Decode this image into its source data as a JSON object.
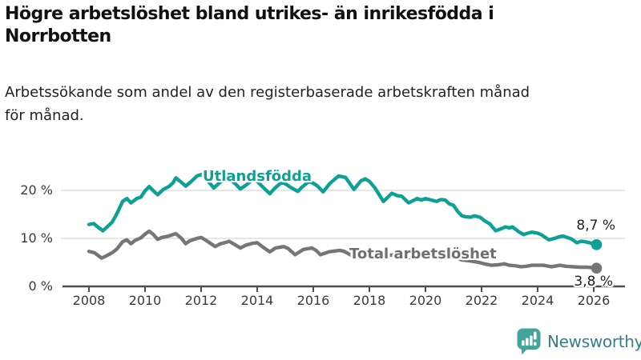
{
  "header": {
    "title_line1": "Högre arbetslöshet bland utrikes- än inrikesfödda i",
    "title_line2": "Norrbotten",
    "subtitle_line1": "Arbetssökande som andel av den registerbaserade arbetskraften månad",
    "subtitle_line2": "för månad."
  },
  "chart_data": {
    "type": "line",
    "title": "Högre arbetslöshet bland utrikes- än inrikesfödda i Norrbotten",
    "subtitle": "Arbetssökande som andel av den registerbaserade arbetskraften månad för månad.",
    "unit": "%",
    "grid": "horizontal-only",
    "legend_position": "inline-labels",
    "x_axis": {
      "ticks": [
        2008,
        2010,
        2012,
        2014,
        2016,
        2018,
        2020,
        2022,
        2024,
        2026
      ]
    },
    "y_axis": {
      "ylim": [
        0,
        25
      ],
      "ticks": [
        {
          "value": 0,
          "label": "0 %"
        },
        {
          "value": 10,
          "label": "10 %"
        },
        {
          "value": 20,
          "label": "20 %"
        }
      ]
    },
    "series": [
      {
        "name": "Utlandsfödda",
        "color": "#0da096",
        "end_value": 8.7,
        "end_value_label": "8,7 %",
        "points": [
          [
            2008.0,
            12.9
          ],
          [
            2008.17,
            13.1
          ],
          [
            2008.33,
            12.3
          ],
          [
            2008.5,
            11.6
          ],
          [
            2008.67,
            12.5
          ],
          [
            2008.83,
            13.4
          ],
          [
            2009.0,
            15.2
          ],
          [
            2009.2,
            17.7
          ],
          [
            2009.35,
            18.3
          ],
          [
            2009.5,
            17.4
          ],
          [
            2009.7,
            18.3
          ],
          [
            2009.85,
            18.6
          ],
          [
            2010.0,
            19.9
          ],
          [
            2010.15,
            20.8
          ],
          [
            2010.3,
            19.9
          ],
          [
            2010.45,
            19.1
          ],
          [
            2010.65,
            20.2
          ],
          [
            2010.85,
            20.8
          ],
          [
            2011.0,
            21.6
          ],
          [
            2011.1,
            22.6
          ],
          [
            2011.25,
            21.9
          ],
          [
            2011.45,
            20.9
          ],
          [
            2011.6,
            21.6
          ],
          [
            2011.85,
            23.0
          ],
          [
            2012.0,
            23.3
          ],
          [
            2012.2,
            22.3
          ],
          [
            2012.45,
            20.5
          ],
          [
            2012.6,
            21.3
          ],
          [
            2012.85,
            22.6
          ],
          [
            2013.0,
            22.4
          ],
          [
            2013.2,
            21.5
          ],
          [
            2013.4,
            20.3
          ],
          [
            2013.6,
            21.1
          ],
          [
            2013.85,
            22.3
          ],
          [
            2014.0,
            21.9
          ],
          [
            2014.2,
            20.7
          ],
          [
            2014.45,
            19.3
          ],
          [
            2014.6,
            20.3
          ],
          [
            2014.85,
            21.6
          ],
          [
            2015.0,
            21.4
          ],
          [
            2015.2,
            20.6
          ],
          [
            2015.45,
            19.8
          ],
          [
            2015.6,
            20.7
          ],
          [
            2015.85,
            21.9
          ],
          [
            2016.0,
            21.5
          ],
          [
            2016.15,
            20.9
          ],
          [
            2016.35,
            19.7
          ],
          [
            2016.6,
            21.5
          ],
          [
            2016.9,
            23.0
          ],
          [
            2017.0,
            22.9
          ],
          [
            2017.15,
            22.7
          ],
          [
            2017.45,
            20.2
          ],
          [
            2017.7,
            22.0
          ],
          [
            2017.85,
            22.4
          ],
          [
            2018.0,
            21.9
          ],
          [
            2018.2,
            20.5
          ],
          [
            2018.5,
            17.7
          ],
          [
            2018.8,
            19.4
          ],
          [
            2019.0,
            18.9
          ],
          [
            2019.15,
            18.8
          ],
          [
            2019.4,
            17.4
          ],
          [
            2019.7,
            18.3
          ],
          [
            2019.85,
            18.0
          ],
          [
            2020.0,
            18.3
          ],
          [
            2020.2,
            18.0
          ],
          [
            2020.4,
            17.7
          ],
          [
            2020.55,
            18.1
          ],
          [
            2020.7,
            18.0
          ],
          [
            2020.85,
            17.2
          ],
          [
            2021.0,
            16.9
          ],
          [
            2021.15,
            15.6
          ],
          [
            2021.3,
            14.7
          ],
          [
            2021.45,
            14.5
          ],
          [
            2021.6,
            14.4
          ],
          [
            2021.75,
            14.7
          ],
          [
            2021.95,
            14.4
          ],
          [
            2022.1,
            13.7
          ],
          [
            2022.3,
            13.0
          ],
          [
            2022.5,
            11.6
          ],
          [
            2022.65,
            11.9
          ],
          [
            2022.85,
            12.4
          ],
          [
            2023.0,
            12.2
          ],
          [
            2023.1,
            12.4
          ],
          [
            2023.35,
            11.3
          ],
          [
            2023.5,
            10.8
          ],
          [
            2023.65,
            11.1
          ],
          [
            2023.8,
            11.3
          ],
          [
            2024.0,
            11.1
          ],
          [
            2024.15,
            10.7
          ],
          [
            2024.4,
            9.7
          ],
          [
            2024.6,
            10.0
          ],
          [
            2024.75,
            10.3
          ],
          [
            2024.9,
            10.5
          ],
          [
            2025.05,
            10.2
          ],
          [
            2025.2,
            9.9
          ],
          [
            2025.4,
            9.1
          ],
          [
            2025.55,
            9.4
          ],
          [
            2025.7,
            9.3
          ],
          [
            2025.85,
            9.1
          ],
          [
            2026.0,
            8.8
          ],
          [
            2026.1,
            8.7
          ]
        ]
      },
      {
        "name": "Total arbetslöshet",
        "color": "#76767a",
        "end_value": 3.8,
        "end_value_label": "3,8 %",
        "points": [
          [
            2008.0,
            7.3
          ],
          [
            2008.2,
            7.0
          ],
          [
            2008.45,
            5.9
          ],
          [
            2008.6,
            6.3
          ],
          [
            2008.85,
            7.1
          ],
          [
            2009.0,
            7.8
          ],
          [
            2009.2,
            9.3
          ],
          [
            2009.35,
            9.7
          ],
          [
            2009.5,
            8.9
          ],
          [
            2009.65,
            9.6
          ],
          [
            2009.85,
            10.1
          ],
          [
            2010.0,
            10.9
          ],
          [
            2010.15,
            11.5
          ],
          [
            2010.3,
            10.8
          ],
          [
            2010.45,
            9.8
          ],
          [
            2010.6,
            10.2
          ],
          [
            2010.8,
            10.4
          ],
          [
            2011.0,
            10.8
          ],
          [
            2011.1,
            11.0
          ],
          [
            2011.3,
            10.0
          ],
          [
            2011.45,
            8.9
          ],
          [
            2011.6,
            9.5
          ],
          [
            2011.85,
            10.0
          ],
          [
            2012.0,
            10.2
          ],
          [
            2012.2,
            9.5
          ],
          [
            2012.5,
            8.3
          ],
          [
            2012.7,
            8.9
          ],
          [
            2012.9,
            9.2
          ],
          [
            2013.0,
            9.4
          ],
          [
            2013.2,
            8.7
          ],
          [
            2013.4,
            8.0
          ],
          [
            2013.6,
            8.6
          ],
          [
            2013.85,
            9.0
          ],
          [
            2014.0,
            9.1
          ],
          [
            2014.2,
            8.2
          ],
          [
            2014.45,
            7.2
          ],
          [
            2014.65,
            8.0
          ],
          [
            2014.95,
            8.3
          ],
          [
            2015.1,
            7.9
          ],
          [
            2015.35,
            6.6
          ],
          [
            2015.65,
            7.7
          ],
          [
            2015.95,
            8.0
          ],
          [
            2016.1,
            7.5
          ],
          [
            2016.25,
            6.6
          ],
          [
            2016.55,
            7.2
          ],
          [
            2016.8,
            7.4
          ],
          [
            2016.95,
            7.5
          ],
          [
            2017.1,
            7.3
          ],
          [
            2017.35,
            6.5
          ],
          [
            2017.6,
            7.0
          ],
          [
            2017.9,
            7.2
          ],
          [
            2018.1,
            6.9
          ],
          [
            2018.4,
            6.0
          ],
          [
            2018.7,
            6.5
          ],
          [
            2019.0,
            6.6
          ],
          [
            2019.3,
            5.9
          ],
          [
            2019.6,
            6.3
          ],
          [
            2019.9,
            6.5
          ],
          [
            2020.1,
            6.6
          ],
          [
            2020.4,
            6.4
          ],
          [
            2020.7,
            6.5
          ],
          [
            2021.0,
            6.2
          ],
          [
            2021.3,
            5.5
          ],
          [
            2021.6,
            5.3
          ],
          [
            2021.9,
            5.0
          ],
          [
            2022.1,
            4.7
          ],
          [
            2022.35,
            4.4
          ],
          [
            2022.6,
            4.5
          ],
          [
            2022.8,
            4.7
          ],
          [
            2023.0,
            4.4
          ],
          [
            2023.2,
            4.3
          ],
          [
            2023.4,
            4.1
          ],
          [
            2023.6,
            4.2
          ],
          [
            2023.8,
            4.4
          ],
          [
            2024.0,
            4.4
          ],
          [
            2024.2,
            4.4
          ],
          [
            2024.5,
            4.1
          ],
          [
            2024.8,
            4.4
          ],
          [
            2025.0,
            4.2
          ],
          [
            2025.25,
            4.1
          ],
          [
            2025.5,
            4.0
          ],
          [
            2025.75,
            4.0
          ],
          [
            2026.0,
            3.9
          ],
          [
            2026.1,
            3.8
          ]
        ]
      }
    ]
  },
  "style": {
    "axis_color": "#4d4d4d",
    "grid_color": "#dedede",
    "tick_label_color": "#3a3a3a",
    "value_label_color": "#1f1f1f"
  },
  "footer": {
    "brand": "Newsworthy",
    "brand_text_color": "#33808a",
    "brand_icon_color": "#44a39b"
  }
}
